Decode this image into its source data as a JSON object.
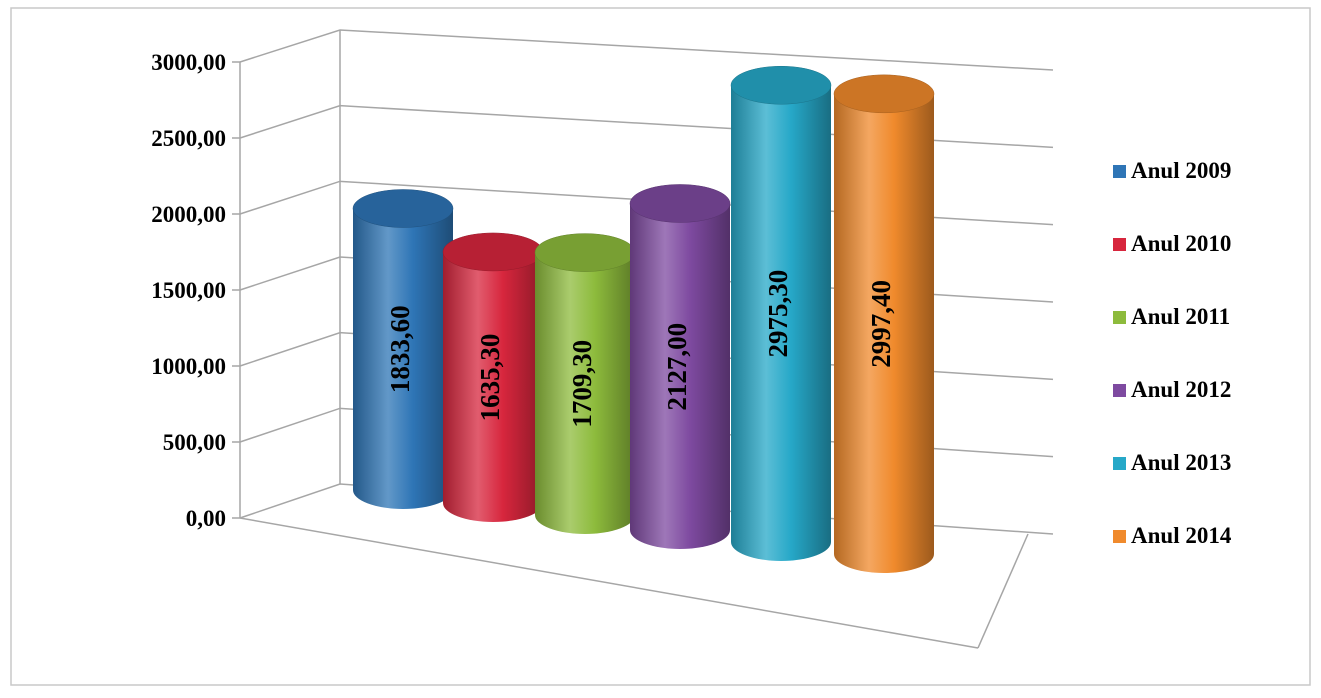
{
  "chart_data": {
    "type": "bar",
    "style": "3d-cylinder",
    "title": "",
    "xlabel": "",
    "ylabel": "",
    "ylim": [
      0,
      3000
    ],
    "yticks": [
      "0,00",
      "500,00",
      "1000,00",
      "1500,00",
      "2000,00",
      "2500,00",
      "3000,00"
    ],
    "grid": true,
    "legend_position": "right",
    "series": [
      {
        "name": "Anul 2009",
        "value": 1833.6,
        "label": "1833,60",
        "color": "#2e75b6"
      },
      {
        "name": "Anul 2010",
        "value": 1635.3,
        "label": "1635,30",
        "color": "#d7263d"
      },
      {
        "name": "Anul 2011",
        "value": 1709.3,
        "label": "1709,30",
        "color": "#8dbb3c"
      },
      {
        "name": "Anul 2012",
        "value": 2127.0,
        "label": "2127,00",
        "color": "#7e4aa0"
      },
      {
        "name": "Anul 2013",
        "value": 2975.3,
        "label": "2975,30",
        "color": "#26a8c8"
      },
      {
        "name": "Anul 2014",
        "value": 2997.4,
        "label": "2997,40",
        "color": "#f08a2c"
      }
    ]
  }
}
